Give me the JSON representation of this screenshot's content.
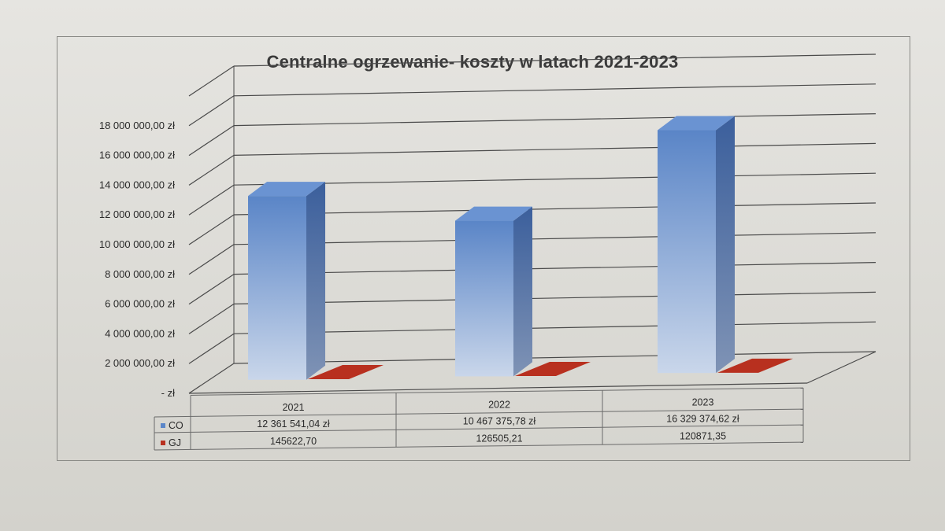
{
  "chart_data": {
    "type": "bar",
    "title": "Centralne ogrzewanie- koszty w latach 2021-2023",
    "categories": [
      "2021",
      "2022",
      "2023"
    ],
    "series": [
      {
        "name": "CO",
        "values": [
          12361541.04,
          10467375.78,
          16329374.62
        ],
        "labels": [
          "12 361 541,04 zł",
          "10 467 375,78 zł",
          "16 329 374,62 zł"
        ],
        "color": "#5b86c8"
      },
      {
        "name": "GJ",
        "values": [
          145622.7,
          126505.21,
          120871.35
        ],
        "labels": [
          "145622,70",
          "126505,21",
          "120871,35"
        ],
        "color": "#b8301f"
      }
    ],
    "ylim": [
      0,
      20000000
    ],
    "y_ticks": [
      {
        "value": 0,
        "label": "-   zł"
      },
      {
        "value": 2000000,
        "label": "2 000 000,00 zł"
      },
      {
        "value": 4000000,
        "label": "4 000 000,00 zł"
      },
      {
        "value": 6000000,
        "label": "6 000 000,00 zł"
      },
      {
        "value": 8000000,
        "label": "8 000 000,00 zł"
      },
      {
        "value": 10000000,
        "label": "10 000 000,00 zł"
      },
      {
        "value": 12000000,
        "label": "12 000 000,00 zł"
      },
      {
        "value": 14000000,
        "label": "14 000 000,00 zł"
      },
      {
        "value": 16000000,
        "label": "16 000 000,00 zł"
      },
      {
        "value": 18000000,
        "label": "18 000 000,00 zł"
      }
    ],
    "grid": true,
    "legend": "data-table"
  }
}
